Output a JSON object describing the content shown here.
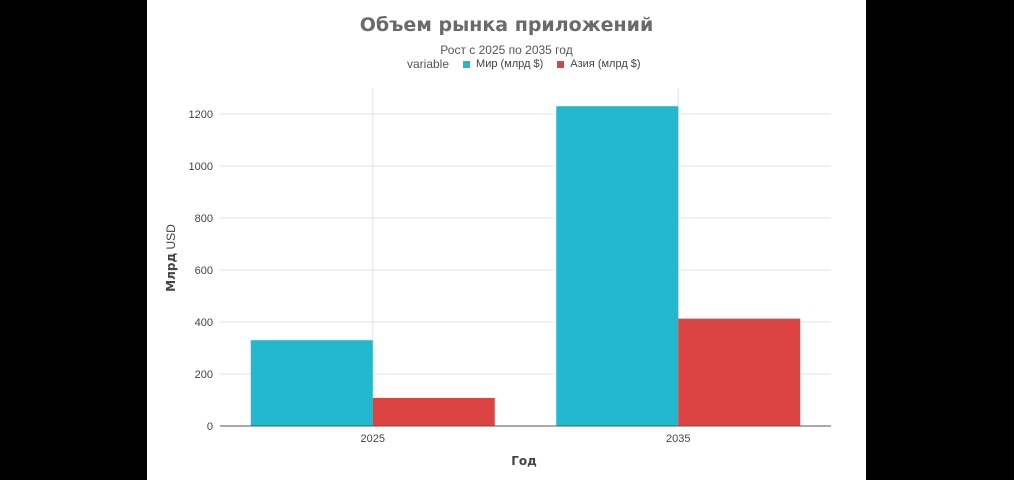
{
  "chart_data": {
    "type": "bar",
    "title": "Объем рынка приложений",
    "subtitle": "Рост с 2025 по 2035 год",
    "legend_title": "variable",
    "legend_position": "top",
    "categories": [
      "2025",
      "2035"
    ],
    "series": [
      {
        "name": "Мир (млрд $)",
        "values": [
          330,
          1230
        ],
        "color": "#22b8cf"
      },
      {
        "name": "Азия (млрд $)",
        "values": [
          108,
          413
        ],
        "color": "#dc4444"
      }
    ],
    "xlabel": "Год",
    "ylabel_bold": "Млрд",
    "ylabel_rest": " USD",
    "ylim": [
      0,
      1300
    ],
    "yticks": [
      0,
      200,
      400,
      600,
      800,
      1000,
      1200
    ],
    "grid": true
  }
}
